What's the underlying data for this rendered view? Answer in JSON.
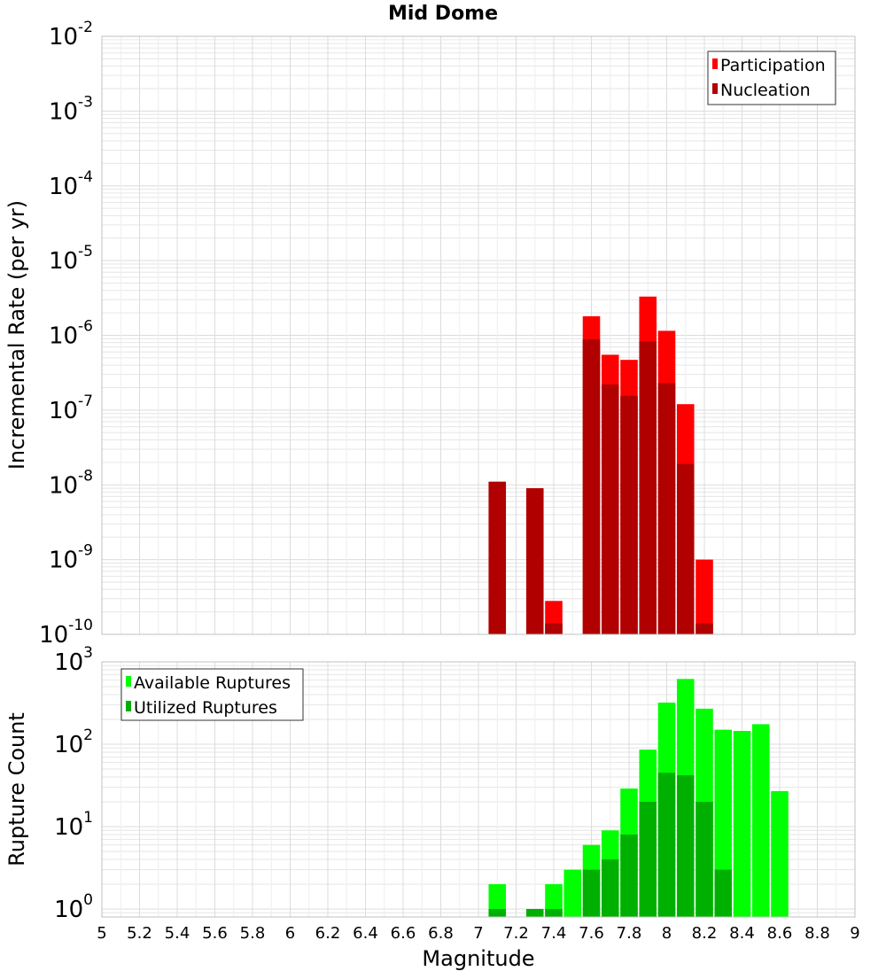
{
  "title": "Mid Dome",
  "xlabel": "Magnitude",
  "colors": {
    "participation": "#ff0000",
    "nucleation": "#b00000",
    "available": "#00ff00",
    "utilized": "#00b000",
    "grid": "#e6e6e6",
    "frame": "#c0c0c0"
  },
  "chart_data": [
    {
      "type": "bar",
      "ylabel": "Incremental Rate (per yr)",
      "yscale": "log",
      "xlim": [
        5,
        9
      ],
      "ylim": [
        1e-10,
        0.01
      ],
      "ytick_exponents": [
        -2,
        -3,
        -4,
        -5,
        -6,
        -7,
        -8,
        -9,
        -10
      ],
      "grid": true,
      "legend_position": "top-right",
      "x": [
        7.1,
        7.3,
        7.4,
        7.6,
        7.7,
        7.8,
        7.9,
        8.0,
        8.1,
        8.2
      ],
      "series": [
        {
          "name": "Participation",
          "values": [
            1.1e-08,
            9e-09,
            2.8e-10,
            1.8e-06,
            5.5e-07,
            4.7e-07,
            3.3e-06,
            1.15e-06,
            1.2e-07,
            1e-09
          ]
        },
        {
          "name": "Nucleation",
          "values": [
            1.1e-08,
            9e-09,
            1.4e-10,
            8.8e-07,
            2.2e-07,
            1.55e-07,
            8.3e-07,
            2.3e-07,
            1.9e-08,
            1.4e-10
          ]
        }
      ]
    },
    {
      "type": "bar",
      "ylabel": "Rupture Count",
      "yscale": "log",
      "xlim": [
        5,
        9
      ],
      "ylim": [
        0.8,
        1000
      ],
      "ytick_exponents": [
        3,
        2,
        1,
        0
      ],
      "xticks": [
        "5",
        "5.2",
        "5.4",
        "5.6",
        "5.8",
        "6",
        "6.2",
        "6.4",
        "6.6",
        "6.8",
        "7",
        "7.2",
        "7.4",
        "7.6",
        "7.8",
        "8",
        "8.2",
        "8.4",
        "8.6",
        "8.8",
        "9"
      ],
      "grid": true,
      "legend_position": "top-left",
      "x": [
        7.1,
        7.3,
        7.4,
        7.5,
        7.6,
        7.7,
        7.8,
        7.9,
        8.0,
        8.1,
        8.2,
        8.3,
        8.4,
        8.5,
        8.6
      ],
      "series": [
        {
          "name": "Available Ruptures",
          "values": [
            2,
            1,
            2,
            3,
            6,
            9,
            29,
            86,
            320,
            620,
            270,
            150,
            145,
            175,
            27
          ]
        },
        {
          "name": "Utilized Ruptures",
          "values": [
            1,
            1,
            1,
            0,
            3,
            4,
            8,
            20,
            45,
            42,
            20,
            3,
            0,
            0,
            0
          ]
        }
      ]
    }
  ]
}
